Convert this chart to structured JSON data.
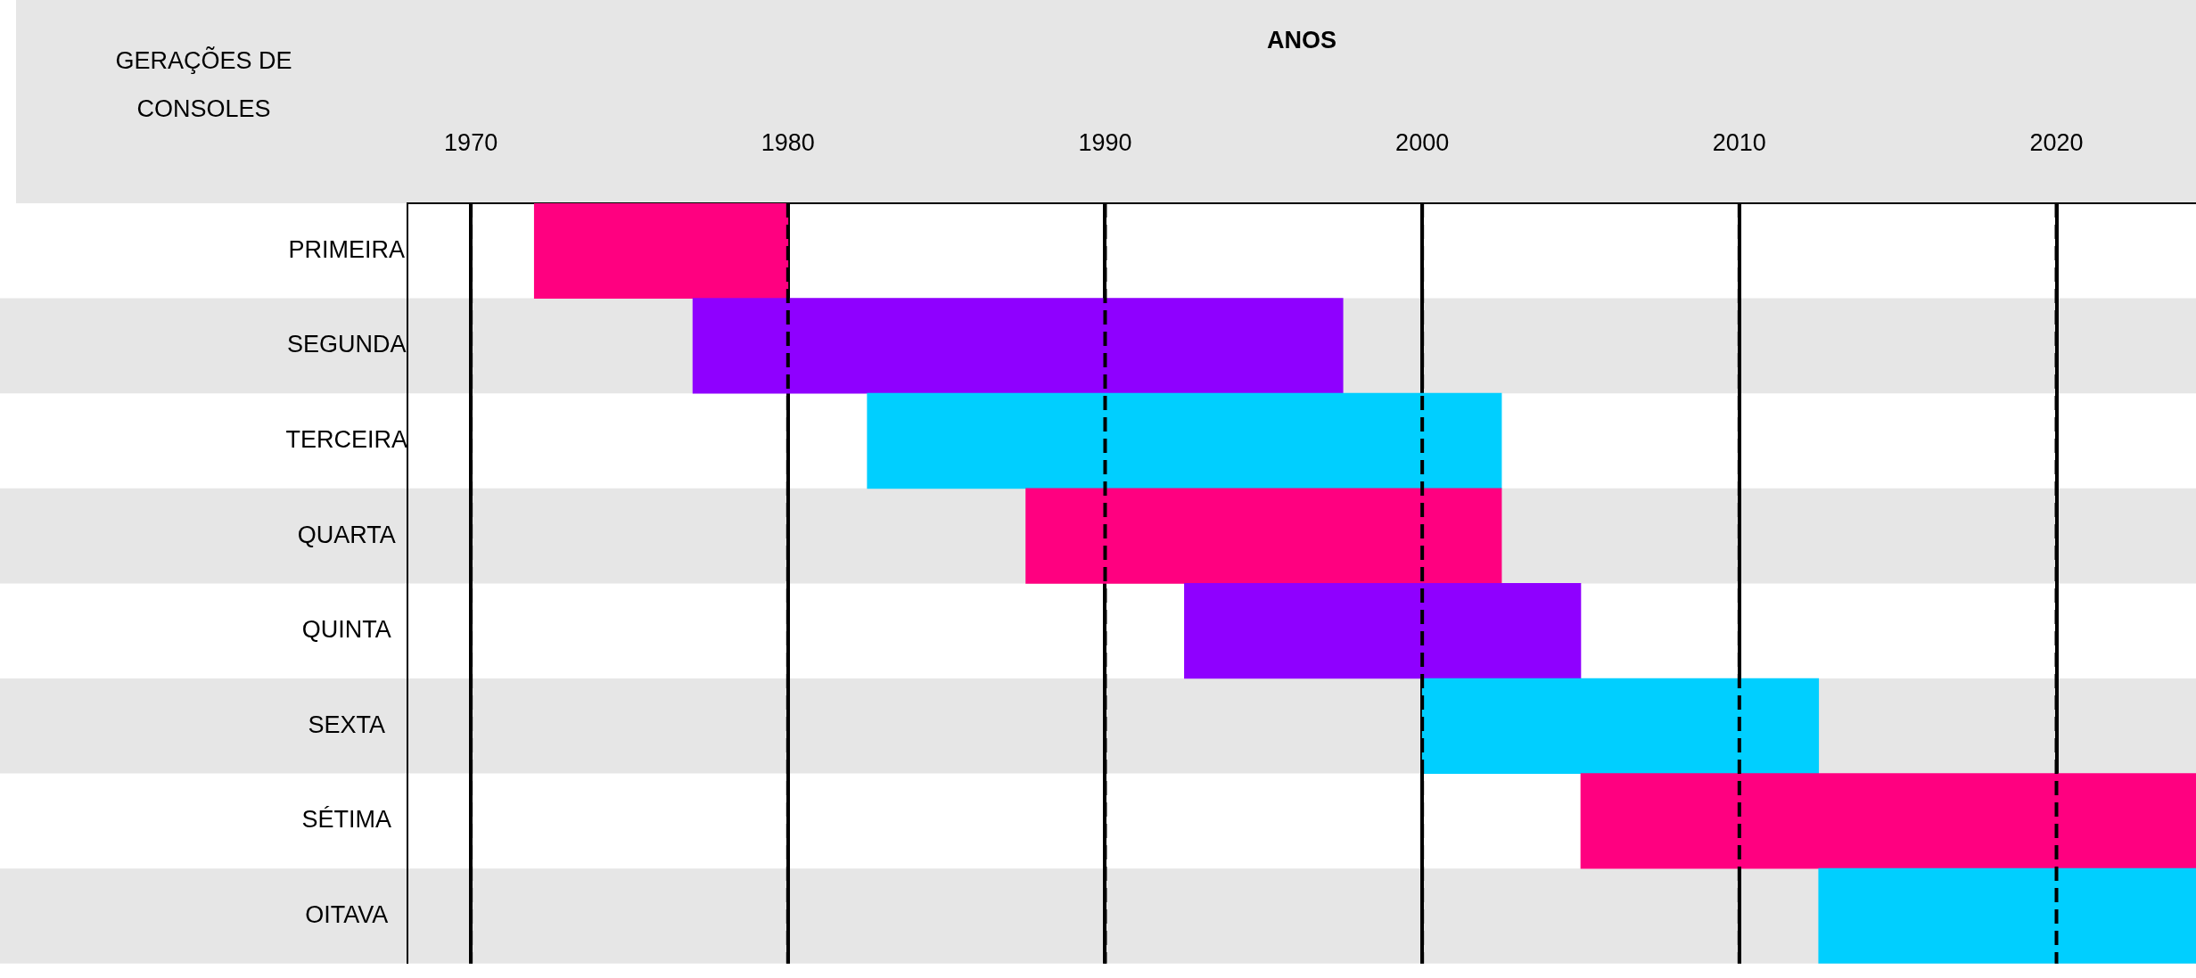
{
  "chart_data": {
    "type": "bar",
    "orientation": "horizontal",
    "xlabel": "ANOS",
    "ylabel": "GERAÇÕES DE CONSOLES",
    "categories": [
      "PRIMEIRA",
      "SEGUNDA",
      "TERCEIRA",
      "QUARTA",
      "QUINTA",
      "SEXTA",
      "SÉTIMA",
      "OITAVA"
    ],
    "base": [
      1972,
      1977,
      1982.5,
      1987.5,
      1992.5,
      2000,
      2005,
      2012.5
    ],
    "values": [
      8,
      20.5,
      20,
      15,
      12.5,
      12.5,
      19.4,
      11.9
    ],
    "colors": [
      "#ff0080",
      "#8f00ff",
      "#00cfff",
      "#ff0080",
      "#8f00ff",
      "#00cfff",
      "#ff0080",
      "#00cfff"
    ],
    "xlim": [
      1968,
      2024.4
    ],
    "xticks": [
      1970,
      1980,
      1990,
      2000,
      2010,
      2020
    ],
    "grid": "x"
  }
}
